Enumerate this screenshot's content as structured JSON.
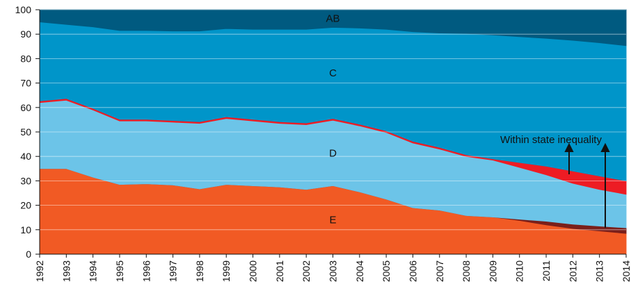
{
  "chart_data": {
    "type": "stacked_area",
    "categories": [
      "1992",
      "1993",
      "1994",
      "1995",
      "1996",
      "1997",
      "1998",
      "1999",
      "2000",
      "2001",
      "2002",
      "2003",
      "2004",
      "2005",
      "2006",
      "2007",
      "2008",
      "2009",
      "2010",
      "2011",
      "2012",
      "2013",
      "2014"
    ],
    "series": [
      {
        "name": "E",
        "color": "#f15a24",
        "values": [
          35,
          35,
          31.5,
          28.5,
          28.8,
          28.3,
          26.7,
          28.5,
          28,
          27.5,
          26.5,
          28,
          25.5,
          22.5,
          19,
          18,
          15.8,
          15.2,
          13.8,
          12,
          10.5,
          9.5,
          8.5
        ]
      },
      {
        "color": "#7a1f1a",
        "values": [
          0,
          0,
          0,
          0,
          0,
          0,
          0,
          0,
          0,
          0,
          0,
          0,
          0,
          0,
          0,
          0,
          0,
          0,
          0.5,
          1.5,
          1.8,
          2,
          2.3
        ]
      },
      {
        "name": "D",
        "color": "#6cc4e8",
        "values": [
          27,
          28,
          27.5,
          26,
          25.7,
          25.7,
          26.8,
          27,
          26.5,
          26,
          26.5,
          26.8,
          27,
          27.3,
          26.5,
          25,
          24.2,
          23.3,
          21.2,
          19,
          16.7,
          15,
          13.7
        ]
      },
      {
        "color": "#ed1c24",
        "values": [
          0.7,
          0.7,
          0.7,
          0.7,
          0.7,
          0.7,
          0.7,
          0.7,
          0.7,
          0.7,
          0.7,
          0.7,
          0.7,
          0.7,
          0.7,
          0.7,
          0.7,
          0.5,
          2,
          3.5,
          5,
          5.5,
          5.5
        ]
      },
      {
        "name": "C",
        "color": "#0095c9",
        "values": [
          32.3,
          30.3,
          33.3,
          36.3,
          36.3,
          36.6,
          37.1,
          36.1,
          36.8,
          37.8,
          38.3,
          37.3,
          39.3,
          41.5,
          44.8,
          46.8,
          49.6,
          50.7,
          51.5,
          52.3,
          53.5,
          54.5,
          55.3
        ]
      },
      {
        "name": "AB",
        "color": "#005a80",
        "values": [
          5,
          6,
          7,
          8.5,
          8.5,
          8.7,
          8.7,
          7.7,
          8,
          8,
          8,
          7.2,
          7.5,
          8,
          9,
          9.5,
          9.7,
          10.3,
          11,
          11.7,
          12.5,
          13.5,
          14.7
        ]
      }
    ],
    "annotation": "Within state inequality",
    "ylim": [
      0,
      100
    ],
    "yticks": [
      0,
      10,
      20,
      30,
      40,
      50,
      60,
      70,
      80,
      90,
      100
    ],
    "grid": true
  }
}
